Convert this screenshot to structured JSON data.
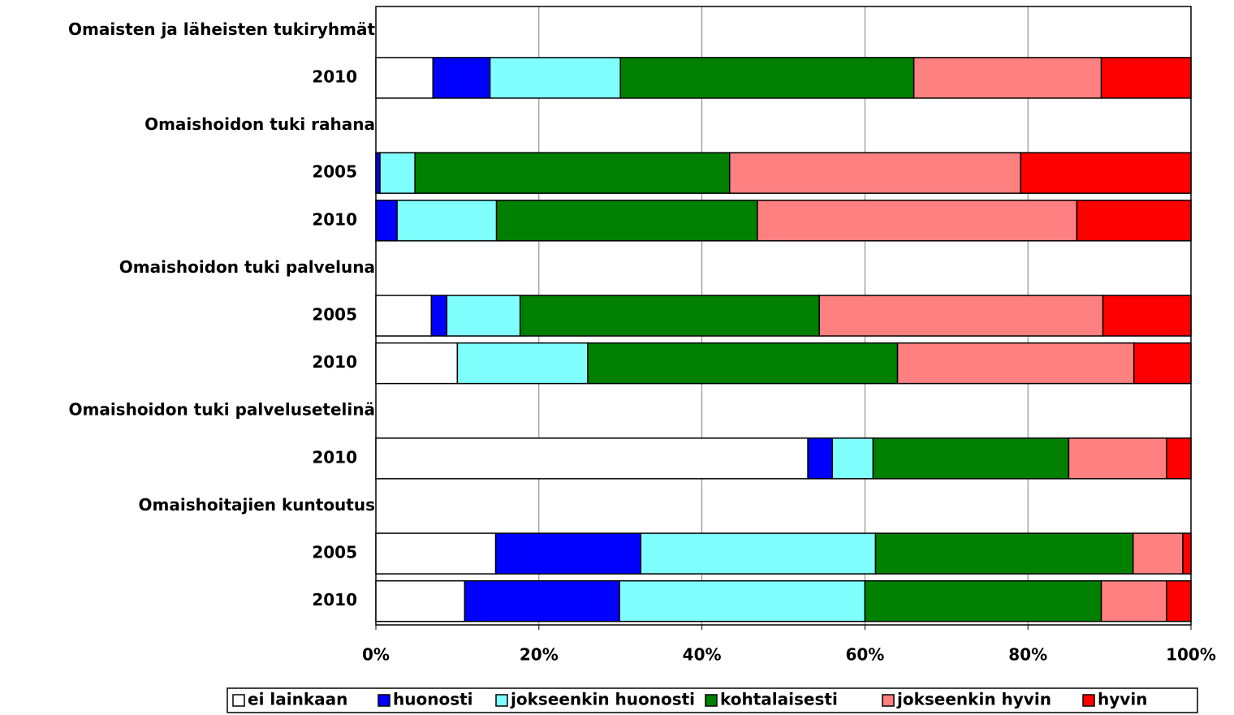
{
  "chart_data": {
    "type": "stacked_bar_horizontal",
    "categories": [
      "Omaisten ja läheisten tukiryhmät",
      "2010",
      "Omaishoidon tuki rahana",
      "2005",
      "2010",
      "Omaishoidon tuki palveluna",
      "2005",
      "2010",
      "Omaishoidon tuki palvelusetelinä",
      "2010",
      "Omaishoitajien kuntoutus",
      "2005",
      "2010"
    ],
    "series": [
      {
        "name": "ei lainkaan",
        "color": "#ffffff",
        "values": [
          null,
          7,
          null,
          0,
          0,
          null,
          6.8,
          10,
          null,
          53,
          null,
          14.7,
          10.9
        ]
      },
      {
        "name": "huonosti",
        "color": "#0000ff",
        "values": [
          null,
          7,
          null,
          0.5,
          2.6,
          null,
          1.9,
          0,
          null,
          3,
          null,
          17.8,
          19
        ]
      },
      {
        "name": "jokseenkin huonosti",
        "color": "#80ffff",
        "values": [
          null,
          16,
          null,
          4.3,
          12.2,
          null,
          9,
          16,
          null,
          5,
          null,
          28.8,
          30.1
        ]
      },
      {
        "name": "kohtalaisesti",
        "color": "#008000",
        "values": [
          null,
          36,
          null,
          38.6,
          32,
          null,
          36.7,
          38,
          null,
          24,
          null,
          31.6,
          29
        ]
      },
      {
        "name": "jokseenkin hyvin",
        "color": "#ff8080",
        "values": [
          null,
          23,
          null,
          35.7,
          39.2,
          null,
          34.8,
          29,
          null,
          12,
          null,
          6.1,
          8
        ]
      },
      {
        "name": "hyvin",
        "color": "#ff0000",
        "values": [
          null,
          11,
          null,
          20.9,
          14,
          null,
          10.8,
          7,
          null,
          3,
          null,
          1,
          3
        ]
      }
    ],
    "xlim": [
      0,
      100
    ],
    "xticks": [
      {
        "value": 0,
        "label": "0%"
      },
      {
        "value": 20,
        "label": "20%"
      },
      {
        "value": 40,
        "label": "40%"
      },
      {
        "value": 60,
        "label": "60%"
      },
      {
        "value": 80,
        "label": "80%"
      },
      {
        "value": 100,
        "label": "100%"
      }
    ],
    "grid": true,
    "legend": "bottom"
  }
}
